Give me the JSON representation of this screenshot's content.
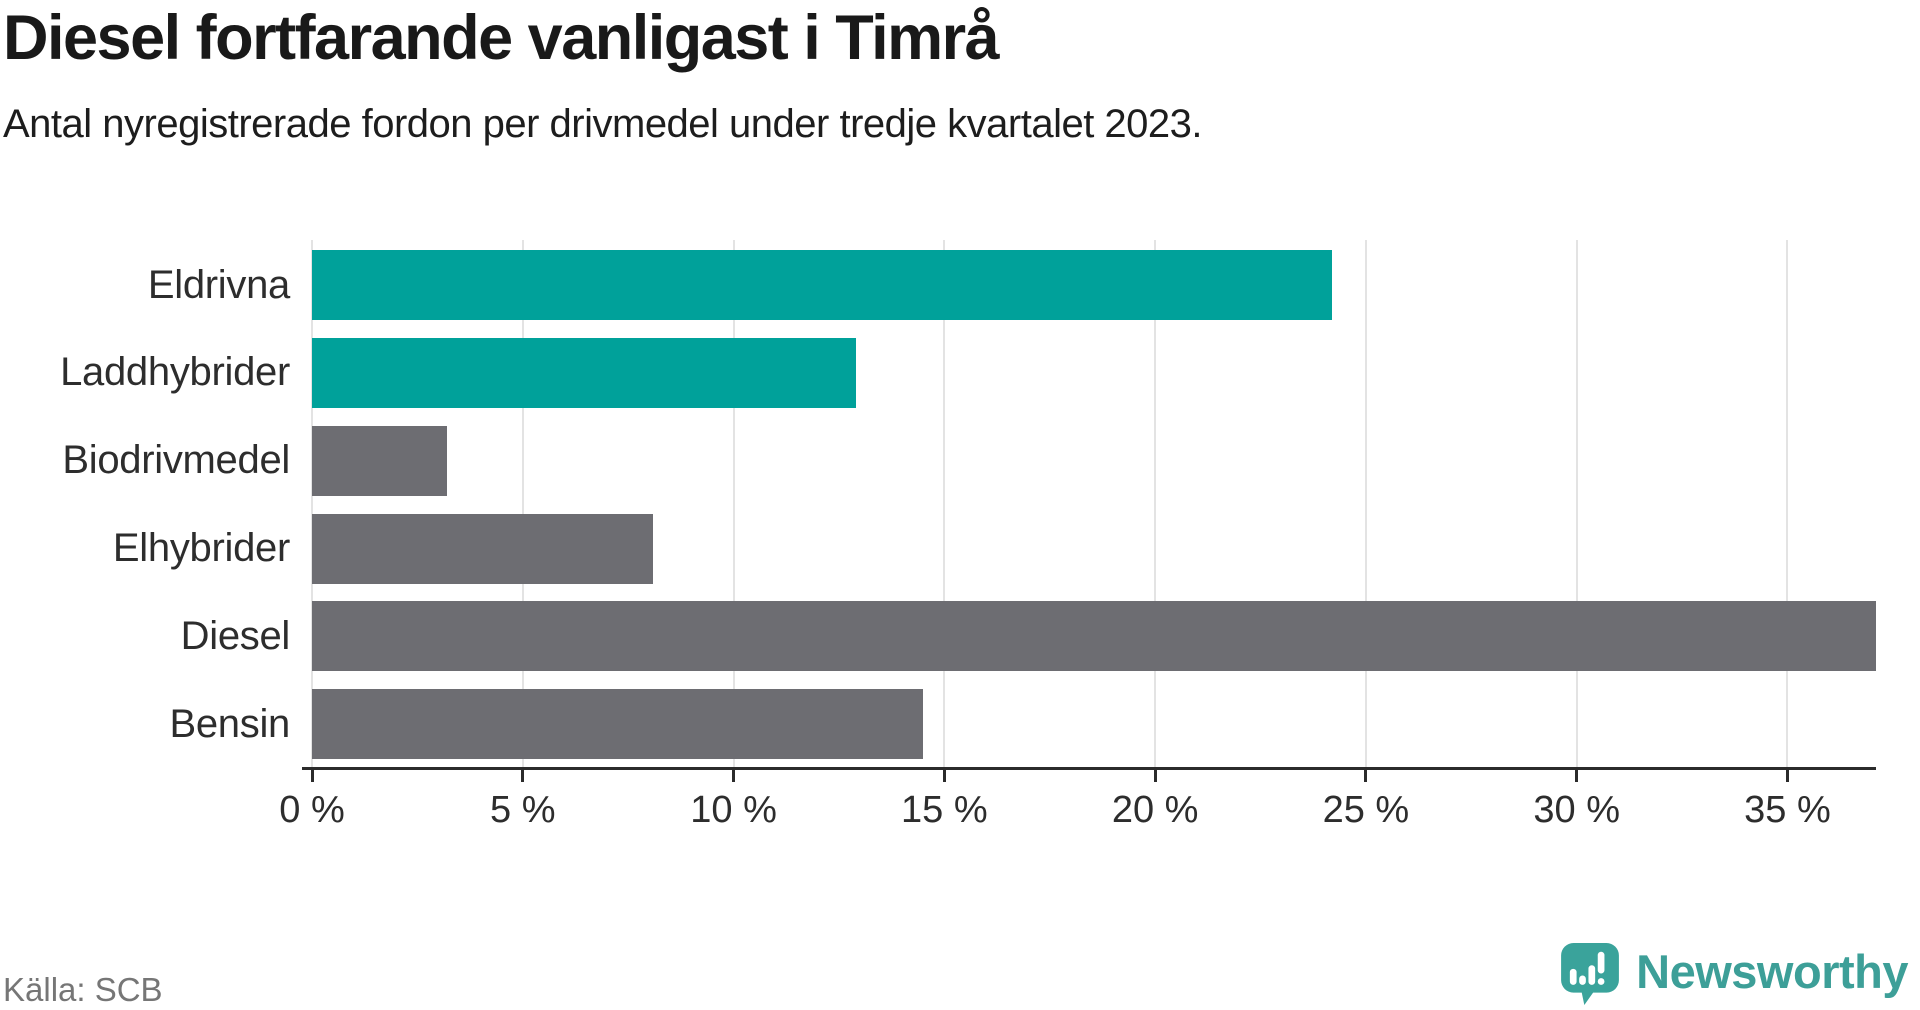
{
  "header": {
    "title": "Diesel fortfarande vanligast i Timrå",
    "subtitle": "Antal nyregistrerade fordon per drivmedel under tredje kvartalet 2023."
  },
  "chart_data": {
    "type": "bar",
    "orientation": "horizontal",
    "title": "Diesel fortfarande vanligast i Timrå",
    "subtitle": "Antal nyregistrerade fordon per drivmedel under tredje kvartalet 2023.",
    "categories": [
      "Eldrivna",
      "Laddhybrider",
      "Biodrivmedel",
      "Elhybrider",
      "Diesel",
      "Bensin"
    ],
    "values": [
      24.2,
      12.9,
      3.2,
      8.1,
      37.1,
      14.5
    ],
    "unit": "%",
    "bar_colors": [
      "#00a19a",
      "#00a19a",
      "#6d6d72",
      "#6d6d72",
      "#6d6d72",
      "#6d6d72"
    ],
    "xlabel": "",
    "ylabel": "",
    "xlim": [
      0,
      37.1
    ],
    "x_ticks": [
      0,
      5,
      10,
      15,
      20,
      25,
      30,
      35
    ],
    "x_tick_labels": [
      "0 %",
      "5 %",
      "10 %",
      "15 %",
      "20 %",
      "25 %",
      "30 %",
      "35 %"
    ],
    "grid": "vertical-gridlines-on",
    "legend": "none"
  },
  "footer": {
    "source": "Källa: SCB",
    "brand": "Newsworthy"
  },
  "colors": {
    "accent_teal": "#00a19a",
    "neutral_gray": "#6d6d72",
    "logo_teal": "#3d9f98",
    "gridline": "#e3e3e3",
    "axis": "#2b2b2b",
    "text_dark": "#191919",
    "text_muted": "#767676"
  }
}
